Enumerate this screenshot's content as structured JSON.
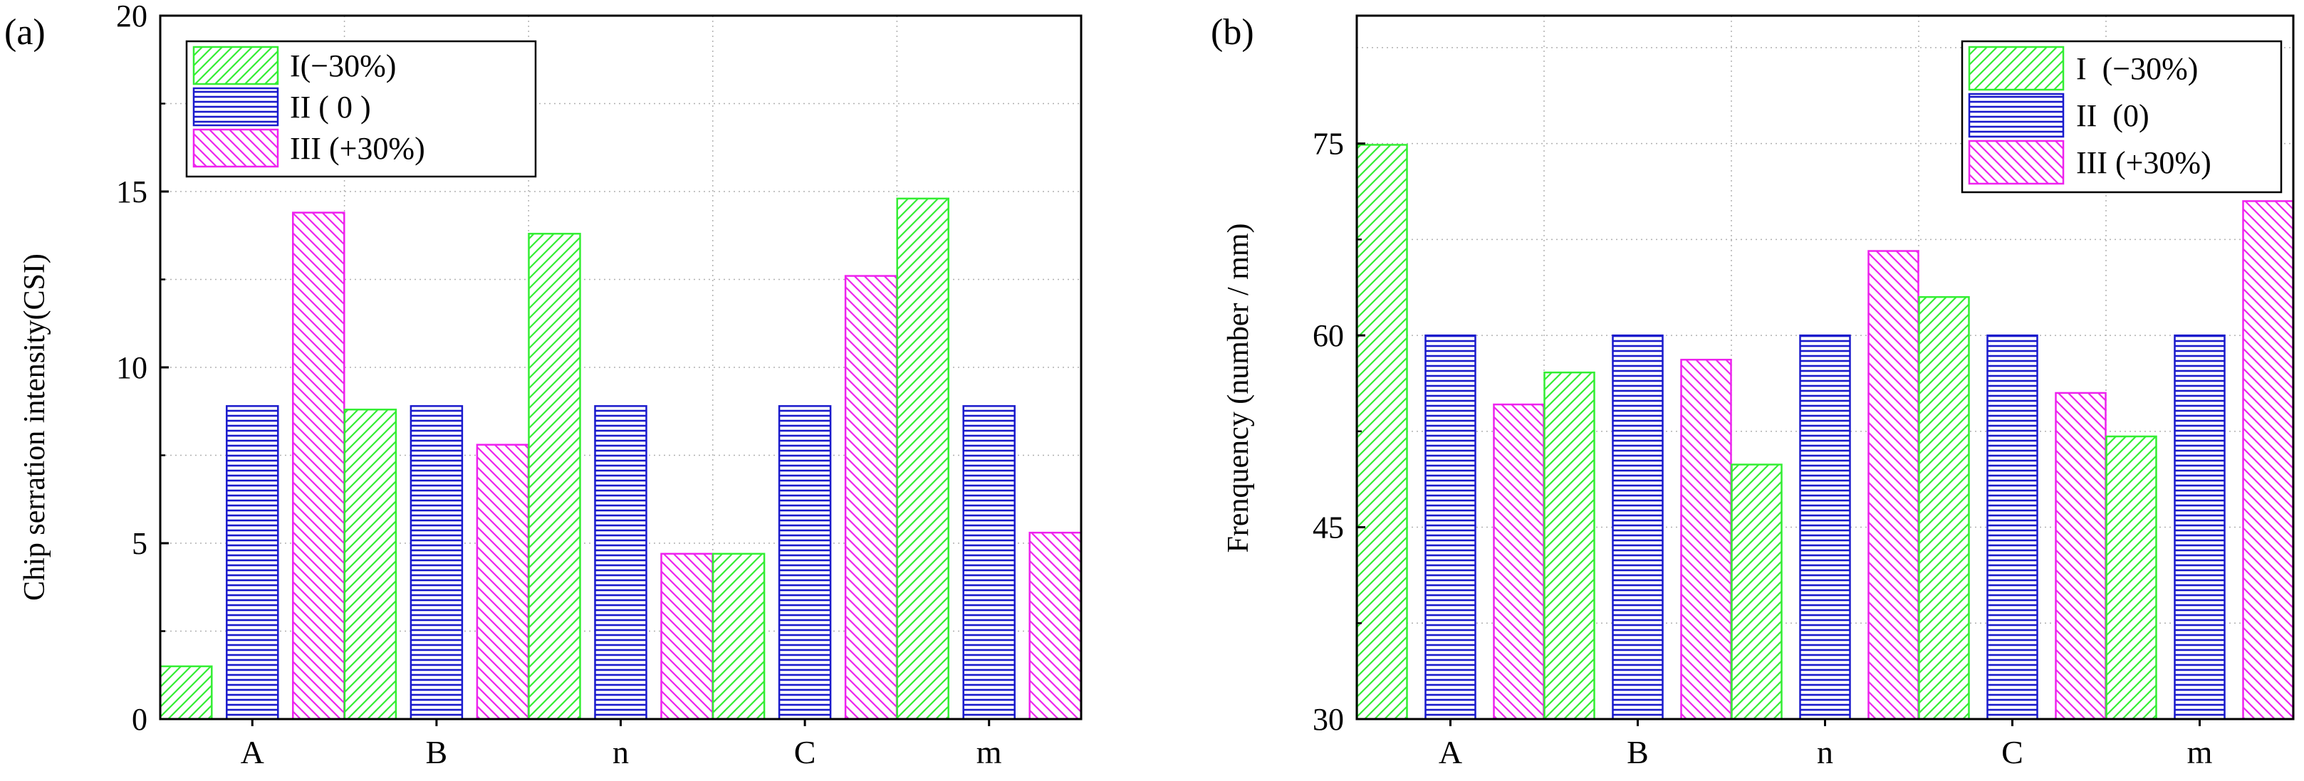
{
  "figure": {
    "colors": {
      "series_I": "#33ee33",
      "series_II": "#1a1acc",
      "series_III": "#ee22ee",
      "grid": "#b0b0b0",
      "axis": "#000000"
    }
  },
  "chart_data": [
    {
      "panel_label": "(a)",
      "type": "bar",
      "title": "",
      "xlabel": "",
      "ylabel": "Chip serration intensity(CSI)",
      "categories": [
        "A",
        "B",
        "n",
        "C",
        "m"
      ],
      "ylim": [
        0,
        20
      ],
      "yticks": [
        0,
        5,
        10,
        15,
        20
      ],
      "grid": true,
      "legend_position": "top-left",
      "series": [
        {
          "name": "I(−30%)",
          "key": "I",
          "hatch": "diag-right",
          "values": [
            1.5,
            8.8,
            13.8,
            4.7,
            14.8
          ]
        },
        {
          "name": "II ( 0 )",
          "key": "II",
          "hatch": "horizontal",
          "values": [
            8.9,
            8.9,
            8.9,
            8.9,
            8.9
          ]
        },
        {
          "name": "III (+30%)",
          "key": "III",
          "hatch": "diag-left",
          "values": [
            14.4,
            7.8,
            4.7,
            12.6,
            5.3
          ]
        }
      ]
    },
    {
      "panel_label": "(b)",
      "type": "bar",
      "title": "",
      "xlabel": "",
      "ylabel": "Frenquency (number / mm)",
      "categories": [
        "A",
        "B",
        "n",
        "C",
        "m"
      ],
      "ylim": [
        30,
        85
      ],
      "yticks": [
        30,
        45,
        60,
        75
      ],
      "grid": true,
      "legend_position": "top-right",
      "series": [
        {
          "name": "I  (−30%)",
          "key": "I",
          "hatch": "diag-right",
          "values": [
            74.9,
            57.1,
            49.9,
            63.0,
            52.1
          ]
        },
        {
          "name": "II  (0)",
          "key": "II",
          "hatch": "horizontal",
          "values": [
            60.0,
            60.0,
            60.0,
            60.0,
            60.0
          ]
        },
        {
          "name": "III (+30%)",
          "key": "III",
          "hatch": "diag-left",
          "values": [
            54.6,
            58.1,
            66.6,
            55.5,
            70.5
          ]
        }
      ]
    }
  ]
}
